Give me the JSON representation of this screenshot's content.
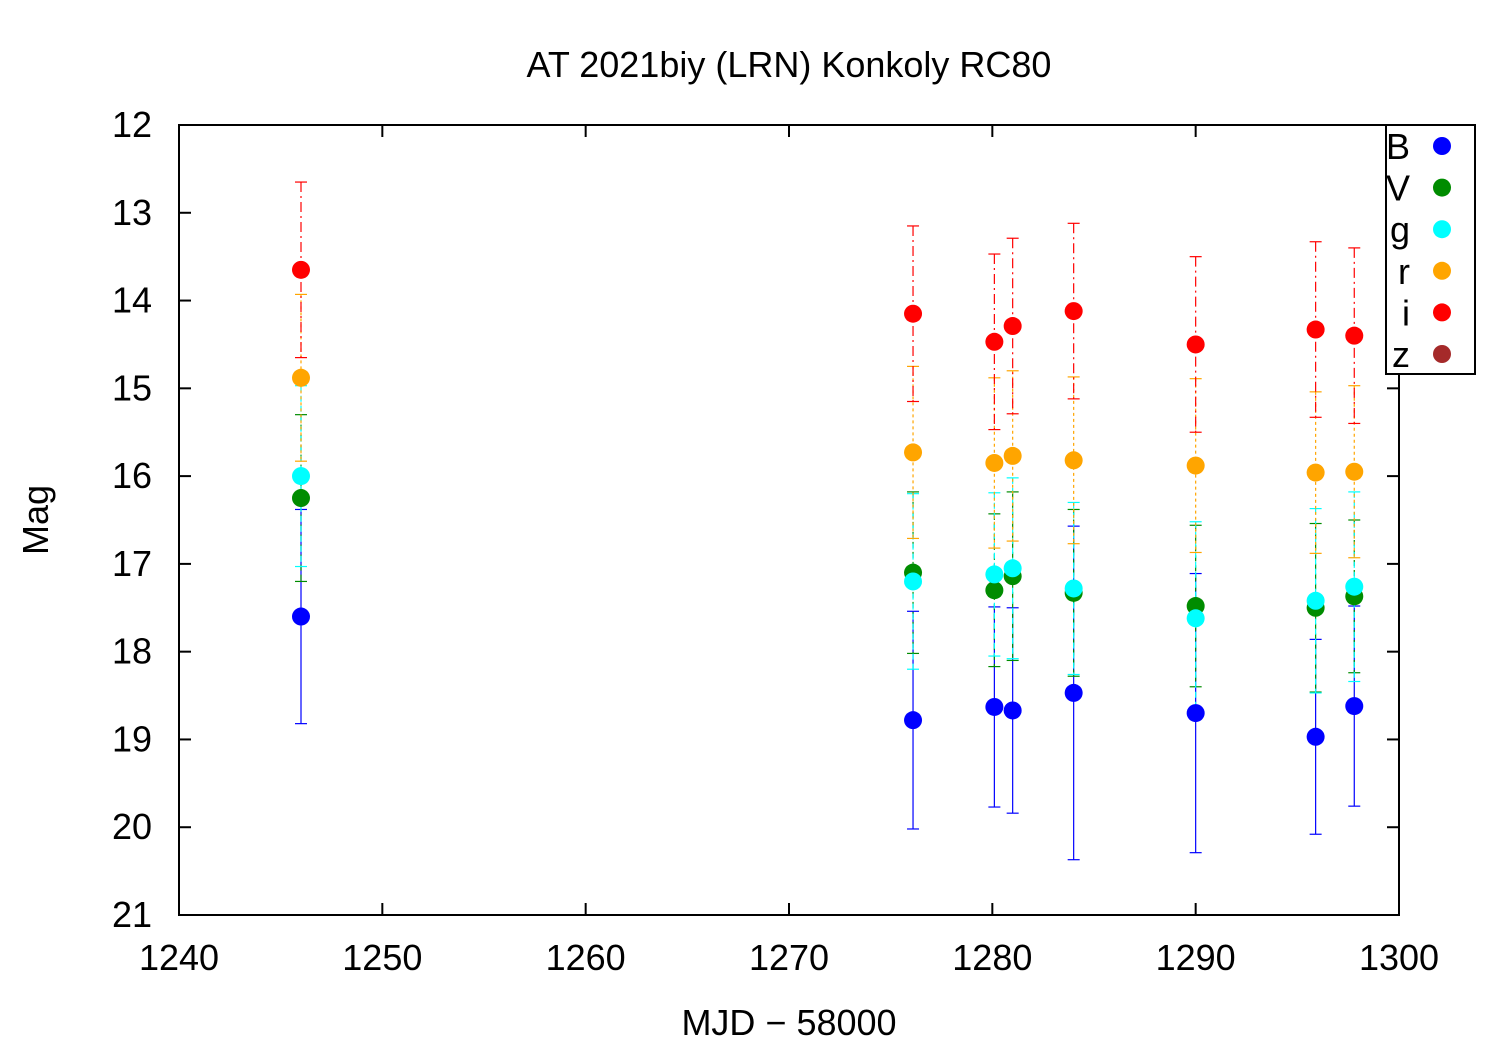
{
  "chart_data": {
    "type": "scatter",
    "title": "AT 2021biy (LRN) Konkoly RC80",
    "xlabel": "MJD − 58000",
    "ylabel": "Mag",
    "xlim": [
      1240,
      1300
    ],
    "ylim": [
      21,
      12
    ],
    "y_inverted": true,
    "xticks": [
      "1240",
      "1250",
      "1260",
      "1270",
      "1280",
      "1290",
      "1300"
    ],
    "yticks": [
      "12",
      "13",
      "14",
      "15",
      "16",
      "17",
      "18",
      "19",
      "20",
      "21"
    ],
    "legend_position": "top-right",
    "grid": false,
    "series": [
      {
        "name": "B",
        "color": "#0000ff",
        "points": [
          {
            "x": 1246.0,
            "y": 17.6,
            "err": 1.22
          },
          {
            "x": 1276.1,
            "y": 18.78,
            "err": 1.24
          },
          {
            "x": 1280.1,
            "y": 18.63,
            "err": 1.14
          },
          {
            "x": 1281.0,
            "y": 18.67,
            "err": 1.17
          },
          {
            "x": 1284.0,
            "y": 18.47,
            "err": 1.9
          },
          {
            "x": 1290.0,
            "y": 18.7,
            "err": 1.59
          },
          {
            "x": 1295.9,
            "y": 18.97,
            "err": 1.11
          },
          {
            "x": 1297.8,
            "y": 18.62,
            "err": 1.14
          }
        ]
      },
      {
        "name": "V",
        "color": "#008c00",
        "points": [
          {
            "x": 1246.0,
            "y": 16.25,
            "err": 0.95
          },
          {
            "x": 1276.1,
            "y": 17.1,
            "err": 0.92
          },
          {
            "x": 1280.1,
            "y": 17.3,
            "err": 0.87
          },
          {
            "x": 1281.0,
            "y": 17.14,
            "err": 0.96
          },
          {
            "x": 1284.0,
            "y": 17.33,
            "err": 0.95
          },
          {
            "x": 1290.0,
            "y": 17.48,
            "err": 0.92
          },
          {
            "x": 1295.9,
            "y": 17.5,
            "err": 0.96
          },
          {
            "x": 1297.8,
            "y": 17.37,
            "err": 0.87
          }
        ]
      },
      {
        "name": "g",
        "color": "#00ffff",
        "points": [
          {
            "x": 1246.0,
            "y": 16.0,
            "err": 1.03
          },
          {
            "x": 1276.1,
            "y": 17.2,
            "err": 1.0
          },
          {
            "x": 1280.1,
            "y": 17.12,
            "err": 0.93
          },
          {
            "x": 1281.0,
            "y": 17.05,
            "err": 1.03
          },
          {
            "x": 1284.0,
            "y": 17.28,
            "err": 0.98
          },
          {
            "x": 1290.0,
            "y": 17.62,
            "err": 1.1
          },
          {
            "x": 1295.9,
            "y": 17.42,
            "err": 1.05
          },
          {
            "x": 1297.8,
            "y": 17.26,
            "err": 1.08
          }
        ]
      },
      {
        "name": "r",
        "color": "#ffa500",
        "points": [
          {
            "x": 1246.0,
            "y": 14.88,
            "err": 0.95
          },
          {
            "x": 1276.1,
            "y": 15.73,
            "err": 0.98
          },
          {
            "x": 1280.1,
            "y": 15.85,
            "err": 0.97
          },
          {
            "x": 1281.0,
            "y": 15.77,
            "err": 0.97
          },
          {
            "x": 1284.0,
            "y": 15.82,
            "err": 0.95
          },
          {
            "x": 1290.0,
            "y": 15.88,
            "err": 0.99
          },
          {
            "x": 1295.9,
            "y": 15.96,
            "err": 0.92
          },
          {
            "x": 1297.8,
            "y": 15.95,
            "err": 0.98
          }
        ]
      },
      {
        "name": "i",
        "color": "#ff0000",
        "points": [
          {
            "x": 1246.0,
            "y": 13.65,
            "err": 1.0
          },
          {
            "x": 1276.1,
            "y": 14.15,
            "err": 1.0
          },
          {
            "x": 1280.1,
            "y": 14.47,
            "err": 1.0
          },
          {
            "x": 1281.0,
            "y": 14.29,
            "err": 1.0
          },
          {
            "x": 1284.0,
            "y": 14.12,
            "err": 1.0
          },
          {
            "x": 1290.0,
            "y": 14.5,
            "err": 1.0
          },
          {
            "x": 1295.9,
            "y": 14.33,
            "err": 1.0
          },
          {
            "x": 1297.8,
            "y": 14.4,
            "err": 1.0
          }
        ]
      },
      {
        "name": "z",
        "color": "#a52a2a",
        "points": []
      }
    ]
  }
}
